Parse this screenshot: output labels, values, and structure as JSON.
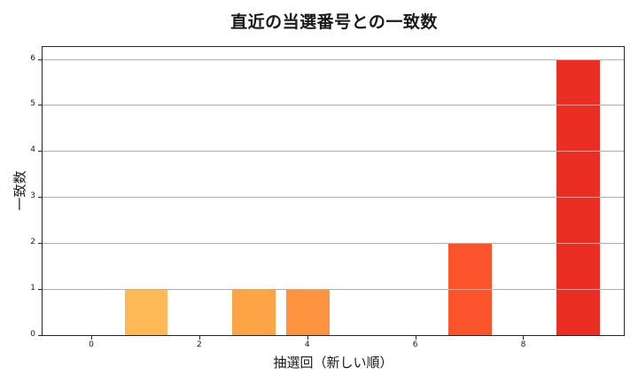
{
  "chart_data": {
    "type": "bar",
    "title": "直近の当選番号との一致数",
    "xlabel": "抽選回（新しい順）",
    "ylabel": "一致数",
    "x": [
      0,
      1,
      2,
      3,
      4,
      5,
      6,
      7,
      8,
      9
    ],
    "values": [
      0,
      1,
      0,
      1,
      1,
      0,
      0,
      2,
      0,
      6
    ],
    "bar_colors": [
      "#FFFFCC",
      "#FEB957",
      "#FEC864",
      "#FDA446",
      "#FC9440",
      "#FC7B36",
      "#FB6A31",
      "#FB542C",
      "#F33F26",
      "#EB2E23"
    ],
    "xticks": [
      0,
      2,
      4,
      6,
      8
    ],
    "xtick_labels": [
      "0",
      "2",
      "4",
      "6",
      "8"
    ],
    "yticks": [
      0,
      1,
      2,
      3,
      4,
      5,
      6
    ],
    "ytick_labels": [
      "0",
      "1",
      "2",
      "3",
      "4",
      "5",
      "6"
    ],
    "xlim": [
      -0.92,
      9.88
    ],
    "ylim": [
      0,
      6.3
    ],
    "bar_width": 0.8,
    "grid": {
      "axis": "y",
      "color": "#b0b0b0"
    },
    "legend": null
  }
}
